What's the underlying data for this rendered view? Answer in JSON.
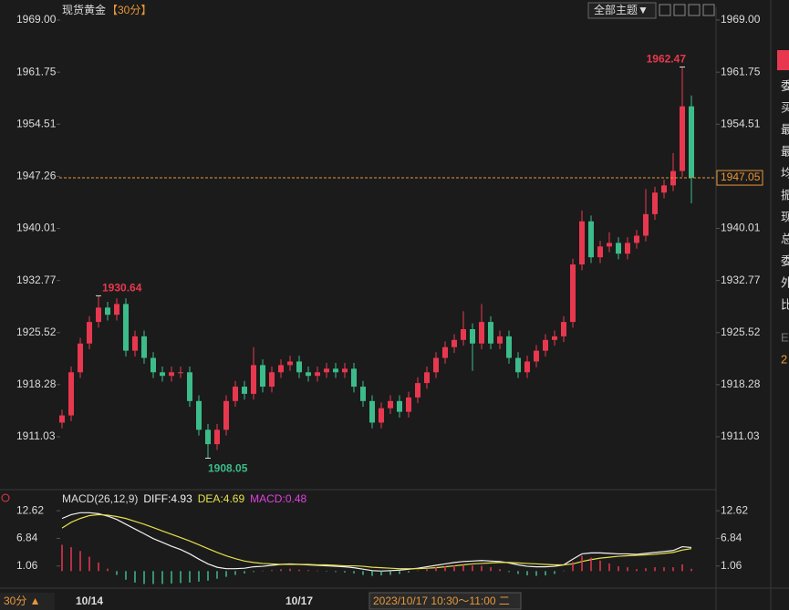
{
  "header": {
    "button": "全部主题▼",
    "footer_period": "30分 ▲",
    "footer_time": "2023/10/17 10:30～11:00 二",
    "side_labels": [
      "委",
      "买",
      "最",
      "最",
      "均",
      "振",
      "现",
      "总",
      "委",
      "外",
      "比",
      "E",
      "2"
    ]
  },
  "chart_data": [
    {
      "type": "candlestick",
      "title": "现货黄金",
      "subtitle": "【30分】",
      "up_color": "#e8384f",
      "down_color": "#3cbc8a",
      "last_line_color": "#e8973a",
      "ylim": [
        1904.56,
        1970.27
      ],
      "yticks": [
        {
          "value": 1969,
          "label": "1969.00"
        },
        1961.75,
        1954.51,
        1947.26,
        1940.01,
        1932.77,
        1925.52,
        1918.28,
        1911.03
      ],
      "xticks": [
        {
          "value": 3,
          "label": "10/14"
        },
        {
          "value": 26,
          "label": "10/17"
        }
      ],
      "open": [
        1913,
        1914,
        1920,
        1924,
        1927,
        1929,
        1928,
        1929.5,
        1923,
        1925,
        1922,
        1920,
        1919.5,
        1920,
        1920,
        1916,
        1912,
        1910,
        1912,
        1916,
        1918,
        1917,
        1921,
        1918,
        1920,
        1921,
        1921.5,
        1920,
        1919.5,
        1920,
        1920.5,
        1920,
        1920.5,
        1918,
        1916,
        1913,
        1915,
        1916,
        1914.5,
        1916.5,
        1918.5,
        1920,
        1922,
        1923.5,
        1924.5,
        1926,
        1924,
        1927,
        1924,
        1925,
        1922,
        1920,
        1921.5,
        1923,
        1924.5,
        1925,
        1927,
        1935,
        1941,
        1936,
        1937.5,
        1938,
        1936.5,
        1938,
        1939,
        1942,
        1945,
        1946,
        1948,
        1957
      ],
      "high": [
        1914.8,
        1920.8,
        1924.8,
        1927.8,
        1930.64,
        1929.8,
        1930.3,
        1930.3,
        1925.8,
        1925.8,
        1922.8,
        1920.8,
        1920.8,
        1920.8,
        1920.8,
        1916.8,
        1912.8,
        1912.8,
        1916.8,
        1918.8,
        1918.8,
        1923.5,
        1921.8,
        1920.8,
        1921.8,
        1922.3,
        1922.3,
        1920.8,
        1920.8,
        1921.3,
        1921.3,
        1921.3,
        1921.3,
        1918.8,
        1916.8,
        1915.8,
        1916.8,
        1916.8,
        1917.3,
        1919.3,
        1920.8,
        1922.8,
        1924.3,
        1925.3,
        1928.5,
        1926.8,
        1929.5,
        1927.8,
        1925.8,
        1925.8,
        1922.8,
        1922.3,
        1923.8,
        1925.3,
        1925.8,
        1927.8,
        1935.8,
        1942.5,
        1941.8,
        1938.3,
        1939.5,
        1938.8,
        1938.8,
        1939.8,
        1945.5,
        1945.8,
        1946.8,
        1950.5,
        1962.47,
        1958.5
      ],
      "low": [
        1912.2,
        1913.2,
        1919.2,
        1923.2,
        1926.2,
        1927.2,
        1927.2,
        1922.2,
        1922.2,
        1921.2,
        1919.2,
        1918.7,
        1918.7,
        1919.2,
        1915.2,
        1911.2,
        1908.05,
        1909.2,
        1911.2,
        1915.2,
        1916.2,
        1916.2,
        1917.2,
        1917.2,
        1919.2,
        1920.2,
        1919.2,
        1918.7,
        1918.7,
        1919.2,
        1919.2,
        1919.2,
        1917.2,
        1915.2,
        1912.2,
        1912.2,
        1914.2,
        1913.7,
        1913.7,
        1915.7,
        1917.7,
        1919.2,
        1921.2,
        1922.7,
        1923.7,
        1920.2,
        1923.2,
        1923.2,
        1923.2,
        1921.2,
        1919.2,
        1919.2,
        1920.7,
        1922.2,
        1923.7,
        1924.2,
        1926.2,
        1934.2,
        1935.2,
        1935.2,
        1936.7,
        1935.7,
        1935.7,
        1937.2,
        1938.2,
        1941.2,
        1944.2,
        1945.2,
        1947.2,
        1943.5
      ],
      "close": [
        1914,
        1920,
        1924,
        1927,
        1929,
        1928,
        1929.5,
        1923,
        1925,
        1922,
        1920,
        1919.5,
        1920,
        1920,
        1916,
        1912,
        1910,
        1912,
        1916,
        1918,
        1917,
        1921,
        1918,
        1920,
        1921,
        1921.5,
        1920,
        1919.5,
        1920,
        1920.5,
        1920,
        1920.5,
        1918,
        1916,
        1913,
        1915,
        1916,
        1914.5,
        1916.5,
        1918.5,
        1920,
        1922,
        1923.5,
        1924.5,
        1926,
        1924,
        1927,
        1924,
        1925,
        1922,
        1920,
        1921.5,
        1923,
        1924.5,
        1925,
        1927,
        1935,
        1941,
        1936,
        1937.5,
        1938,
        1936.5,
        1938,
        1939,
        1942,
        1945,
        1946,
        1948,
        1957,
        1947.05
      ],
      "high_labels": [
        4,
        68
      ],
      "low_labels": [
        16
      ]
    },
    {
      "type": "macd",
      "title": "MACD(26,12,9)",
      "ylim": [
        -2.8,
        14.55
      ],
      "yticks": [
        12.62,
        6.84,
        1.06
      ],
      "series": [
        {
          "name": "DIFF",
          "color": "#f2f2f2",
          "values": [
            11,
            11.8,
            12.2,
            12.2,
            12,
            11.5,
            10.8,
            9.8,
            8.8,
            7.8,
            6.8,
            6,
            5.2,
            4.5,
            3.6,
            2.5,
            1.5,
            0.8,
            0.5,
            0.5,
            0.6,
            0.9,
            1,
            1.2,
            1.4,
            1.5,
            1.4,
            1.3,
            1.2,
            1.1,
            1,
            0.9,
            0.7,
            0.4,
            0.1,
            0,
            0.1,
            0.2,
            0.4,
            0.6,
            0.9,
            1.2,
            1.5,
            1.8,
            2,
            2.1,
            2.2,
            2.1,
            2,
            1.7,
            1.3,
            1,
            0.9,
            0.9,
            1,
            1.3,
            2.5,
            3.6,
            3.8,
            3.8,
            3.7,
            3.6,
            3.6,
            3.5,
            3.7,
            3.9,
            4.1,
            4.3,
            5.1,
            4.93
          ]
        },
        {
          "name": "DEA",
          "color": "#e6e04a",
          "values": [
            9,
            10.2,
            11,
            11.6,
            11.8,
            11.7,
            11.4,
            11,
            10.4,
            9.8,
            9.1,
            8.4,
            7.7,
            7,
            6.3,
            5.5,
            4.7,
            3.9,
            3.2,
            2.6,
            2.1,
            1.8,
            1.6,
            1.5,
            1.4,
            1.4,
            1.4,
            1.4,
            1.3,
            1.3,
            1.2,
            1.1,
            1.1,
            1,
            0.8,
            0.7,
            0.6,
            0.5,
            0.5,
            0.5,
            0.6,
            0.7,
            0.9,
            1.1,
            1.3,
            1.5,
            1.6,
            1.7,
            1.8,
            1.8,
            1.7,
            1.6,
            1.5,
            1.4,
            1.3,
            1.3,
            1.5,
            2,
            2.4,
            2.7,
            2.9,
            3.1,
            3.2,
            3.3,
            3.4,
            3.5,
            3.7,
            3.9,
            4.4,
            4.69
          ]
        },
        {
          "name": "MACD",
          "color": "#e040e0",
          "up_color": "#e8384f",
          "down_color": "#3cbc8a",
          "values": [
            5.5,
            5,
            4.2,
            3,
            1.8,
            0.5,
            -0.8,
            -1.8,
            -2.4,
            -2.7,
            -2.7,
            -2.7,
            -2.6,
            -2.5,
            -2.4,
            -2.2,
            -2,
            -1.6,
            -1.2,
            -0.8,
            -0.5,
            -0.2,
            0.1,
            0.2,
            0.4,
            0.5,
            0.3,
            0.2,
            0.1,
            -0.1,
            -0.2,
            -0.3,
            -0.5,
            -0.8,
            -1,
            -0.9,
            -0.8,
            -0.6,
            -0.3,
            0.1,
            0.4,
            0.8,
            1,
            1.2,
            1.3,
            1.2,
            1.1,
            0.8,
            0.4,
            -0.2,
            -0.6,
            -0.9,
            -1,
            -0.9,
            -0.6,
            0.1,
            1.9,
            3.2,
            2.8,
            2.2,
            1.6,
            1,
            0.8,
            0.4,
            0.6,
            0.8,
            0.8,
            0.8,
            1.4,
            0.48
          ]
        }
      ]
    }
  ]
}
